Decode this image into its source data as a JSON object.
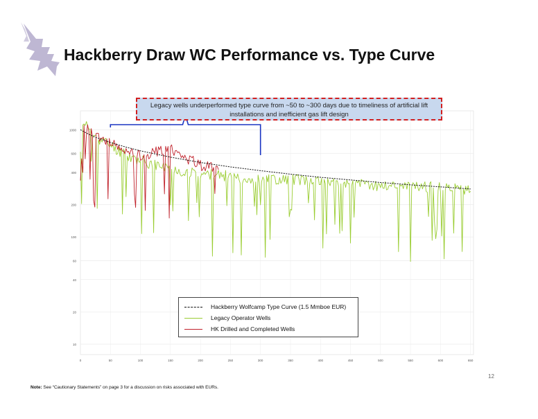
{
  "slide": {
    "title": "Hackberry Draw WC Performance vs. Type Curve",
    "page_number": "12",
    "footnote_prefix": "Note:",
    "footnote_text": "See “Cautionary Statements” on page 3 for a discussion on risks associated with EURs.",
    "logo_icon": "hawk-logo-icon",
    "logo_color": "#b3aacb"
  },
  "callout": {
    "text": "Legacy wells underperformed type curve from ~50 to ~300 days due to timeliness of artificial lift installations and inefficient gas lift design",
    "bracket_color": "#1a35c2",
    "fill_color": "#c8d8ee",
    "border_color": "#d11f1f"
  },
  "chart_data": {
    "type": "line",
    "title": "",
    "ylabel": "",
    "xlabel": "",
    "y_scale": "log",
    "x": [
      0,
      10,
      25,
      50,
      75,
      100,
      150,
      200,
      250,
      300,
      350,
      400,
      450,
      500,
      550,
      600,
      650
    ],
    "x_ticks": [
      "0",
      "50",
      "100",
      "150",
      "200",
      "250",
      "300",
      "350",
      "400",
      "450",
      "500",
      "550",
      "600",
      "650"
    ],
    "x_tick_values": [
      0,
      50,
      100,
      150,
      200,
      250,
      300,
      350,
      400,
      450,
      500,
      550,
      600,
      650
    ],
    "y_tick_values": [
      10,
      20,
      40,
      60,
      100,
      200,
      400,
      600,
      1000
    ],
    "xlim": [
      0,
      655
    ],
    "ylim": [
      8,
      1500
    ],
    "grid": true,
    "legend_position": "bottom-center",
    "series": [
      {
        "name": "Hackberry Wolfcamp Type Curve (1.5 Mmboe EUR)",
        "color": "#111111",
        "dash": true,
        "x": [
          0,
          10,
          25,
          50,
          75,
          100,
          150,
          200,
          250,
          300,
          350,
          400,
          450,
          500,
          550,
          600,
          650
        ],
        "values": [
          1000,
          930,
          850,
          760,
          690,
          635,
          555,
          495,
          450,
          415,
          385,
          360,
          340,
          322,
          306,
          293,
          280
        ]
      },
      {
        "name": "Legacy Operator Wells",
        "color": "#9acd32",
        "x": [
          0,
          5,
          25,
          50,
          75,
          100,
          150,
          200,
          250,
          300,
          350,
          400,
          450,
          500,
          550,
          600,
          650
        ],
        "values": [
          600,
          1200,
          850,
          720,
          580,
          520,
          430,
          390,
          370,
          340,
          350,
          330,
          315,
          300,
          300,
          290,
          270
        ]
      },
      {
        "name": "HK Drilled and Completed Wells",
        "color": "#c0202a",
        "x": [
          0,
          5,
          25,
          50,
          75,
          100,
          125,
          150,
          175,
          200,
          230
        ],
        "values": [
          300,
          1100,
          850,
          750,
          620,
          580,
          620,
          680,
          560,
          470,
          430
        ]
      }
    ]
  }
}
